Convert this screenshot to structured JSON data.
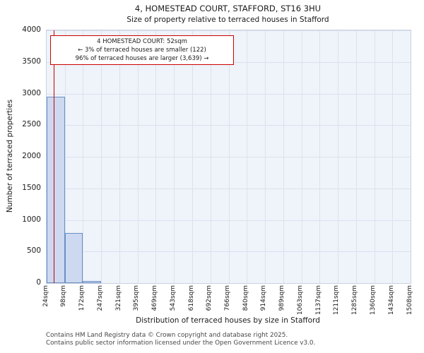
{
  "chart_data": {
    "type": "bar",
    "title": "4, HOMESTEAD COURT, STAFFORD, ST16 3HU",
    "subtitle": "Size of property relative to terraced houses in Stafford",
    "xlabel": "Distribution of terraced houses by size in Stafford",
    "ylabel": "Number of terraced properties",
    "ylim": [
      0,
      4000
    ],
    "y_ticks": [
      0,
      500,
      1000,
      1500,
      2000,
      2500,
      3000,
      3500,
      4000
    ],
    "bin_edges_sqm": [
      24,
      98,
      172,
      247,
      321,
      395,
      469,
      543,
      618,
      692,
      766,
      840,
      914,
      989,
      1063,
      1137,
      1211,
      1285,
      1360,
      1434,
      1508
    ],
    "x_tick_labels": [
      "24sqm",
      "98sqm",
      "172sqm",
      "247sqm",
      "321sqm",
      "395sqm",
      "469sqm",
      "543sqm",
      "618sqm",
      "692sqm",
      "766sqm",
      "840sqm",
      "914sqm",
      "989sqm",
      "1063sqm",
      "1137sqm",
      "1211sqm",
      "1285sqm",
      "1360sqm",
      "1434sqm",
      "1508sqm"
    ],
    "values": [
      2950,
      790,
      30,
      0,
      0,
      0,
      0,
      0,
      0,
      0,
      0,
      0,
      0,
      0,
      0,
      0,
      0,
      0,
      0,
      0
    ],
    "marker_value_sqm": 52,
    "grid": true,
    "legend": "none",
    "bar_fill": "#ccd9f0",
    "bar_border": "#6a8fc4",
    "marker_color": "#cc0000",
    "annotation": {
      "line1": "4 HOMESTEAD COURT: 52sqm",
      "line2": "← 3% of terraced houses are smaller (122)",
      "line3": "96% of terraced houses are larger (3,639) →"
    }
  },
  "footer": {
    "line1": "Contains HM Land Registry data © Crown copyright and database right 2025.",
    "line2": "Contains public sector information licensed under the Open Government Licence v3.0."
  }
}
